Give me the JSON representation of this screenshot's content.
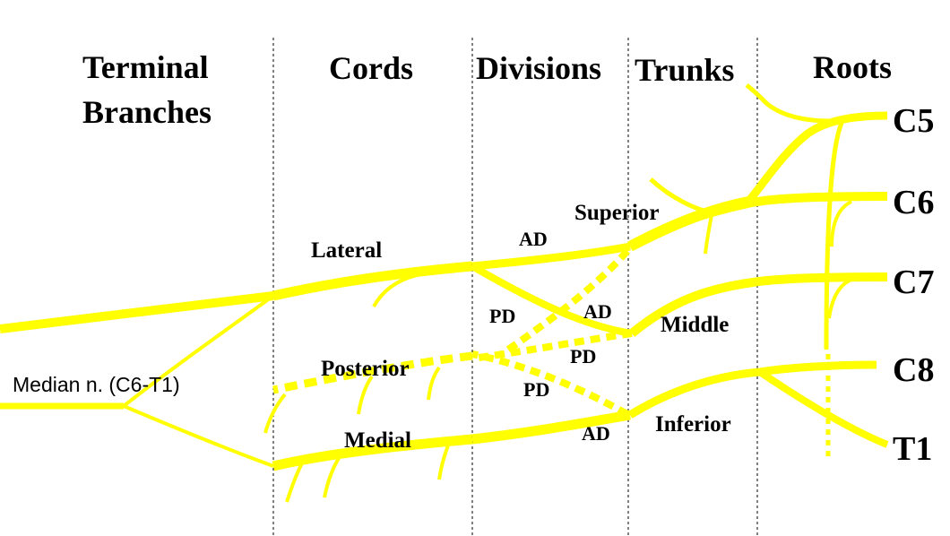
{
  "colors": {
    "nerve": "#ffff00",
    "divider": "#000000",
    "text": "#000000",
    "background": "#ffffff"
  },
  "headers": {
    "terminal_line1": "Terminal",
    "terminal_line2": "Branches",
    "cords": "Cords",
    "divisions": "Divisions",
    "trunks": "Trunks",
    "roots": "Roots"
  },
  "roots": {
    "c5": "C5",
    "c6": "C6",
    "c7": "C7",
    "c8": "C8",
    "t1": "T1"
  },
  "trunks": {
    "superior": "Superior",
    "middle": "Middle",
    "inferior": "Inferior"
  },
  "cords": {
    "lateral": "Lateral",
    "posterior": "Posterior",
    "medial": "Medial"
  },
  "divisions": {
    "superior_anterior": "AD",
    "superior_posterior": "PD",
    "middle_anterior": "AD",
    "middle_posterior": "PD",
    "inferior_posterior": "PD",
    "inferior_anterior": "AD"
  },
  "terminal": {
    "median": "Median n. (C6-T1)"
  }
}
